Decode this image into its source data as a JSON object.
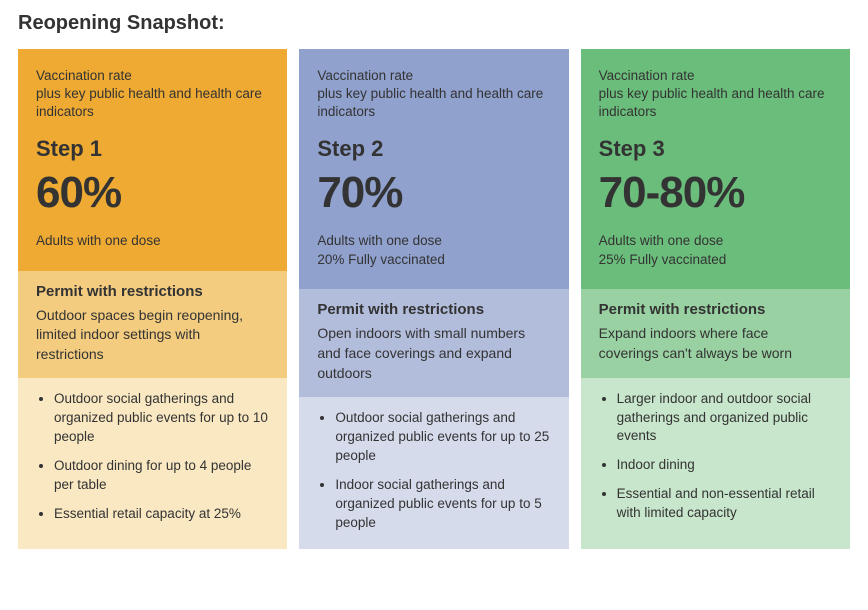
{
  "title": "Reopening Snapshot:",
  "columns": [
    {
      "colors": {
        "top": "#eeaa33",
        "mid": "#f3cc7f",
        "bot": "#f9e8c2"
      },
      "subhead": "Vaccination rate\nplus key public health and health care indicators",
      "step": "Step 1",
      "pct": "60%",
      "doseLines": [
        "Adults with one dose"
      ],
      "permitTitle": "Permit with restrictions",
      "permitSub": "Outdoor spaces begin reopening, limited indoor settings with restrictions",
      "bullets": [
        "Outdoor social gatherings and organized public events for up to 10 people",
        "Outdoor dining for up to 4 people per table",
        "Essential retail capacity at 25%"
      ]
    },
    {
      "colors": {
        "top": "#90a1ce",
        "mid": "#b2bddc",
        "bot": "#d6dbec"
      },
      "subhead": "Vaccination rate\nplus key public health and health care indicators",
      "step": "Step 2",
      "pct": "70%",
      "doseLines": [
        "Adults with one dose",
        "20% Fully vaccinated"
      ],
      "permitTitle": "Permit with restrictions",
      "permitSub": "Open indoors with small numbers and face coverings and expand outdoors",
      "bullets": [
        "Outdoor social gatherings and organized public events for up to 25 people",
        "Indoor social gatherings and organized public events for up to 5 people"
      ]
    },
    {
      "colors": {
        "top": "#6bbd7b",
        "mid": "#99d1a2",
        "bot": "#c7e6cb"
      },
      "subhead": "Vaccination rate\nplus key public health and health care indicators",
      "step": "Step 3",
      "pct": "70-80%",
      "doseLines": [
        "Adults with one dose",
        "25% Fully vaccinated"
      ],
      "permitTitle": "Permit with restrictions",
      "permitSub": "Expand indoors where face coverings can't always be worn",
      "bullets": [
        "Larger indoor and outdoor social gatherings and organized public events",
        "Indoor dining",
        "Essential and non-essential retail with limited capacity"
      ]
    }
  ]
}
